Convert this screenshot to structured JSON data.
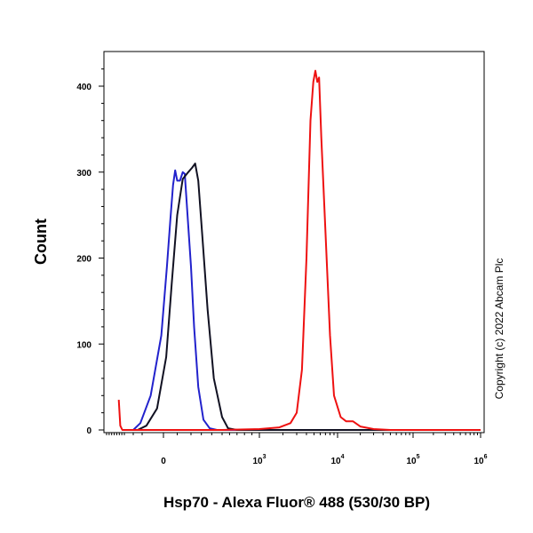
{
  "chart_data": {
    "type": "line",
    "xlabel": "Hsp70 - Alexa Fluor® 488 (530/30 BP)",
    "ylabel": "Count",
    "ylim": [
      0,
      440
    ],
    "x_scale": "biexponential",
    "y_ticks": [
      "0",
      "100",
      "200",
      "300",
      "400"
    ],
    "x_ticks": [
      {
        "label": "0"
      },
      {
        "label": "10",
        "exp": "3"
      },
      {
        "label": "10",
        "exp": "4"
      },
      {
        "label": "10",
        "exp": "5"
      },
      {
        "label": "10",
        "exp": "6"
      }
    ],
    "grid": false,
    "series": [
      {
        "color": "#2222cc",
        "points": [
          [
            -200,
            0
          ],
          [
            -120,
            8
          ],
          [
            -60,
            40
          ],
          [
            -10,
            110
          ],
          [
            25,
            190
          ],
          [
            50,
            245
          ],
          [
            70,
            285
          ],
          [
            85,
            302
          ],
          [
            100,
            290
          ],
          [
            120,
            290
          ],
          [
            140,
            300
          ],
          [
            155,
            298
          ],
          [
            175,
            250
          ],
          [
            200,
            190
          ],
          [
            230,
            120
          ],
          [
            270,
            50
          ],
          [
            320,
            12
          ],
          [
            380,
            2
          ],
          [
            450,
            0
          ],
          [
            1000000,
            0
          ]
        ]
      },
      {
        "color": "#111122",
        "points": [
          [
            -150,
            0
          ],
          [
            -80,
            5
          ],
          [
            -30,
            25
          ],
          [
            20,
            85
          ],
          [
            60,
            170
          ],
          [
            100,
            250
          ],
          [
            140,
            292
          ],
          [
            180,
            300
          ],
          [
            210,
            305
          ],
          [
            240,
            310
          ],
          [
            270,
            290
          ],
          [
            310,
            225
          ],
          [
            360,
            140
          ],
          [
            420,
            60
          ],
          [
            500,
            15
          ],
          [
            580,
            2
          ],
          [
            700,
            0
          ],
          [
            1000000,
            0
          ]
        ]
      },
      {
        "color": "#ee1111",
        "points": [
          [
            -520,
            35
          ],
          [
            -460,
            5
          ],
          [
            -380,
            0
          ],
          [
            500,
            0
          ],
          [
            1000,
            1
          ],
          [
            1800,
            3
          ],
          [
            2500,
            8
          ],
          [
            3000,
            20
          ],
          [
            3500,
            70
          ],
          [
            4000,
            200
          ],
          [
            4500,
            360
          ],
          [
            4900,
            405
          ],
          [
            5200,
            418
          ],
          [
            5500,
            405
          ],
          [
            5800,
            410
          ],
          [
            6200,
            340
          ],
          [
            7000,
            230
          ],
          [
            8000,
            110
          ],
          [
            9000,
            40
          ],
          [
            11000,
            15
          ],
          [
            13000,
            10
          ],
          [
            16000,
            10
          ],
          [
            20000,
            4
          ],
          [
            30000,
            1
          ],
          [
            50000,
            0
          ],
          [
            1000000,
            0
          ]
        ]
      }
    ]
  },
  "copyright": "Copyright (c) 2022 Abcam Plc"
}
